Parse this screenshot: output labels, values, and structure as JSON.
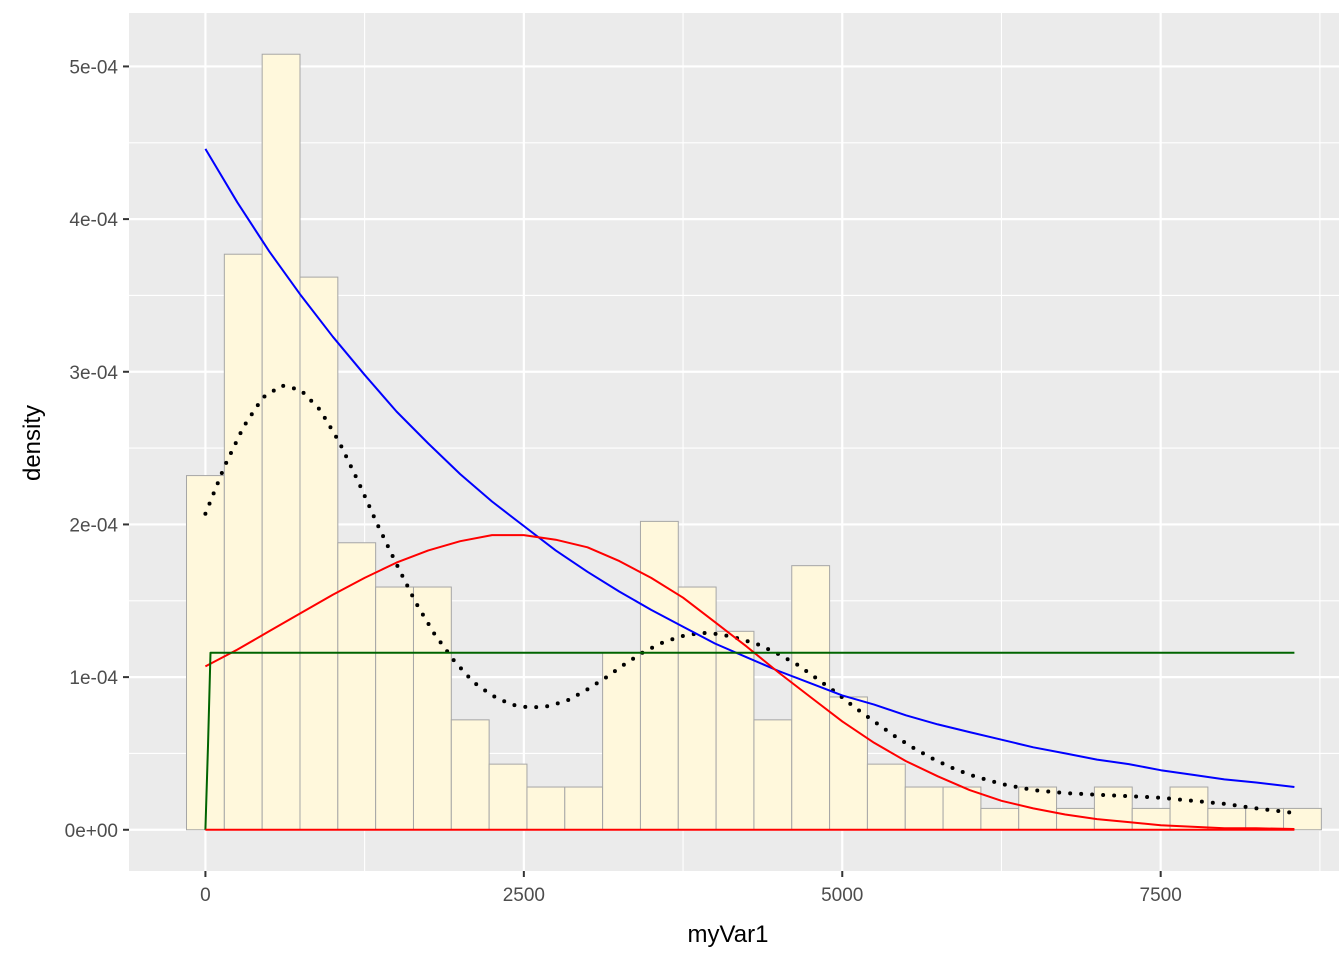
{
  "chart_data": {
    "type": "bar",
    "xlabel": "myVar1",
    "ylabel": "density",
    "xlim": [
      -600,
      8900
    ],
    "ylim": [
      -2.7e-05,
      0.000535
    ],
    "x_ticks": [
      {
        "value": 0,
        "label": "0"
      },
      {
        "value": 2500,
        "label": "2500"
      },
      {
        "value": 5000,
        "label": "5000"
      },
      {
        "value": 7500,
        "label": "7500"
      }
    ],
    "y_ticks": [
      {
        "value": 0,
        "label": "0e+00"
      },
      {
        "value": 0.0001,
        "label": "1e-04"
      },
      {
        "value": 0.0002,
        "label": "2e-04"
      },
      {
        "value": 0.0003,
        "label": "3e-04"
      },
      {
        "value": 0.0004,
        "label": "4e-04"
      },
      {
        "value": 0.0005,
        "label": "5e-04"
      }
    ],
    "grid": true,
    "histogram": {
      "bin_width": 297,
      "bin_centers": [
        0,
        297,
        594,
        891,
        1188,
        1485,
        1782,
        2079,
        2376,
        2673,
        2970,
        3267,
        3564,
        3861,
        4158,
        4455,
        4752,
        5049,
        5346,
        5643,
        5940,
        6237,
        6534,
        6831,
        7128,
        7425,
        7722,
        8019,
        8316,
        8613
      ],
      "values": [
        0.000232,
        0.000377,
        0.000508,
        0.000362,
        0.000188,
        0.000159,
        0.000159,
        7.2e-05,
        4.3e-05,
        2.8e-05,
        2.8e-05,
        0.000116,
        0.000202,
        0.000159,
        0.00013,
        7.2e-05,
        0.000173,
        8.7e-05,
        4.3e-05,
        2.8e-05,
        2.8e-05,
        1.4e-05,
        2.8e-05,
        1.4e-05,
        2.8e-05,
        1.4e-05,
        2.8e-05,
        1.4e-05,
        1.4e-05,
        1.4e-05
      ],
      "fill": "#FFF8DC",
      "stroke": "#A6A6A6"
    },
    "series": [
      {
        "style": "dotted",
        "color": "#000000",
        "x": [
          0,
          150,
          300,
          450,
          600,
          750,
          900,
          1050,
          1200,
          1350,
          1500,
          1650,
          1800,
          1950,
          2100,
          2250,
          2400,
          2550,
          2700,
          2850,
          3000,
          3150,
          3300,
          3450,
          3600,
          3750,
          3900,
          4050,
          4200,
          4350,
          4500,
          4650,
          4800,
          4950,
          5100,
          5250,
          5400,
          5550,
          5700,
          5850,
          6000,
          6250,
          6500,
          6750,
          7000,
          7250,
          7500,
          7750,
          8000,
          8250,
          8550
        ],
        "y": [
          0.000207,
          0.000238,
          0.000264,
          0.000283,
          0.000291,
          0.000288,
          0.000275,
          0.000254,
          0.000228,
          0.0002,
          0.000174,
          0.000149,
          0.000128,
          0.000111,
          9.7e-05,
          8.8e-05,
          8.2e-05,
          8e-05,
          8.1e-05,
          8.5e-05,
          9.2e-05,
          0.0001,
          0.000109,
          0.000117,
          0.000123,
          0.000127,
          0.000129,
          0.000128,
          0.000125,
          0.000121,
          0.000115,
          0.000108,
          9.9e-05,
          9e-05,
          8e-05,
          7.1e-05,
          6.2e-05,
          5.4e-05,
          4.7e-05,
          4.1e-05,
          3.6e-05,
          3e-05,
          2.6e-05,
          2.4e-05,
          2.3e-05,
          2.2e-05,
          2.1e-05,
          1.9e-05,
          1.7e-05,
          1.4e-05,
          1.1e-05
        ]
      },
      {
        "style": "solid",
        "color": "#0000FF",
        "x": [
          0,
          250,
          500,
          750,
          1000,
          1250,
          1500,
          1750,
          2000,
          2250,
          2500,
          2750,
          3000,
          3250,
          3500,
          3750,
          4000,
          4250,
          4500,
          4750,
          5000,
          5250,
          5500,
          5750,
          6000,
          6250,
          6500,
          6750,
          7000,
          7250,
          7500,
          7750,
          8000,
          8250,
          8550
        ],
        "y": [
          0.000446,
          0.000411,
          0.000379,
          0.00035,
          0.000323,
          0.000298,
          0.000274,
          0.000253,
          0.000233,
          0.000215,
          0.000199,
          0.000183,
          0.000169,
          0.000156,
          0.000144,
          0.000133,
          0.000122,
          0.000113,
          0.000104,
          9.6e-05,
          8.8e-05,
          8.2e-05,
          7.5e-05,
          6.9e-05,
          6.4e-05,
          5.9e-05,
          5.4e-05,
          5e-05,
          4.6e-05,
          4.3e-05,
          3.9e-05,
          3.6e-05,
          3.3e-05,
          3.1e-05,
          2.8e-05
        ]
      },
      {
        "style": "solid",
        "color": "#FF0000",
        "x": [
          0,
          250,
          500,
          750,
          1000,
          1250,
          1500,
          1750,
          2000,
          2250,
          2500,
          2750,
          3000,
          3250,
          3500,
          3750,
          4000,
          4250,
          4500,
          4750,
          5000,
          5250,
          5500,
          5750,
          6000,
          6250,
          6500,
          6750,
          7000,
          7250,
          7500,
          7750,
          8000,
          8250,
          8550
        ],
        "y": [
          0.000107,
          0.000118,
          0.00013,
          0.000142,
          0.000154,
          0.000165,
          0.000175,
          0.000183,
          0.000189,
          0.000193,
          0.000193,
          0.00019,
          0.000185,
          0.000176,
          0.000165,
          0.000152,
          0.000136,
          0.00012,
          0.000103,
          8.7e-05,
          7.1e-05,
          5.7e-05,
          4.5e-05,
          3.5e-05,
          2.6e-05,
          1.9e-05,
          1.4e-05,
          1e-05,
          7e-06,
          5e-06,
          3e-06,
          2e-06,
          1e-06,
          1e-06,
          5e-07
        ]
      },
      {
        "style": "solid",
        "color": "#006400",
        "x": [
          0,
          20,
          40,
          8550
        ],
        "y": [
          0,
          5.5e-05,
          0.000116,
          0.000116
        ]
      },
      {
        "style": "solid",
        "color": "#FF0000",
        "x": [
          0,
          8550
        ],
        "y": [
          0,
          0
        ]
      }
    ]
  }
}
